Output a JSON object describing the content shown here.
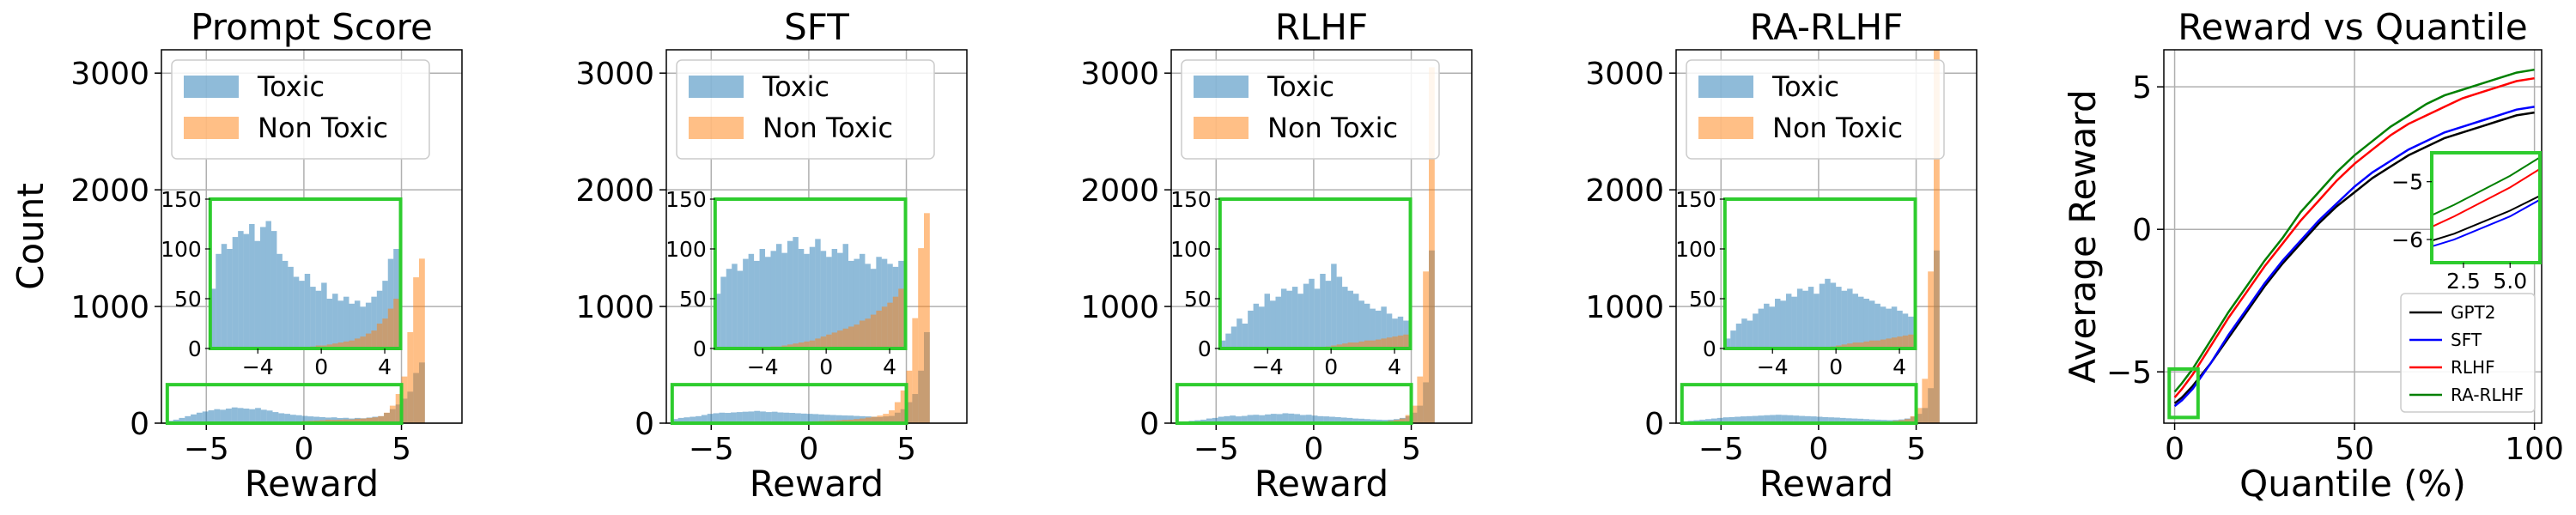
{
  "chart_data": [
    {
      "type": "bar",
      "title": "Prompt Score",
      "xlabel": "Reward",
      "ylabel": "Count",
      "xlim": [
        -7.3,
        8.1
      ],
      "ylim": [
        0,
        3200
      ],
      "xticks": [
        -5,
        0,
        5
      ],
      "xtick_labels": [
        "−5",
        "0",
        "5"
      ],
      "yticks": [
        0,
        1000,
        2000,
        3000
      ],
      "ytick_labels": [
        "0",
        "1000",
        "2000",
        "3000"
      ],
      "grid": true,
      "legend": {
        "position": "top-left",
        "entries": [
          "Toxic",
          "Non Toxic"
        ]
      },
      "bin_start": -7.0,
      "bin_width": 0.3,
      "series": [
        {
          "name": "Toxic",
          "color": "#1f77b4",
          "values": [
            20,
            30,
            45,
            60,
            75,
            90,
            100,
            110,
            120,
            115,
            125,
            135,
            130,
            125,
            120,
            130,
            115,
            108,
            95,
            85,
            80,
            72,
            68,
            62,
            58,
            55,
            52,
            48,
            50,
            44,
            46,
            40,
            45,
            42,
            48,
            55,
            60,
            88,
            120,
            160,
            210,
            270,
            430,
            520
          ]
        },
        {
          "name": "Non Toxic",
          "color": "#ff7f0e",
          "values": [
            0,
            0,
            0,
            0,
            0,
            0,
            0,
            0,
            0,
            0,
            0,
            0,
            0,
            0,
            0,
            2,
            3,
            4,
            5,
            7,
            10,
            13,
            15,
            18,
            20,
            22,
            25,
            30,
            28,
            30,
            32,
            32,
            38,
            40,
            45,
            50,
            60,
            90,
            150,
            250,
            400,
            780,
            1250,
            1410
          ]
        }
      ],
      "inset": {
        "xlim": [
          -7,
          5
        ],
        "ylim": [
          0,
          150
        ],
        "xtick_labels": [
          "−4",
          "0",
          "4"
        ],
        "ytick_labels": [
          "0",
          "50",
          "100",
          "150"
        ],
        "bin_start": -7.0,
        "bin_width": 0.35,
        "series": [
          {
            "name": "Toxic",
            "values": [
              60,
              95,
              105,
              100,
              112,
              118,
              115,
              125,
              108,
              122,
              128,
              118,
              95,
              88,
              82,
              72,
              68,
              75,
              62,
              58,
              66,
              50,
              55,
              48,
              52,
              45,
              48,
              42,
              46,
              52,
              58,
              68,
              90,
              100
            ]
          },
          {
            "name": "Non Toxic",
            "values": [
              0,
              0,
              0,
              0,
              0,
              0,
              0,
              0,
              0,
              0,
              0,
              0,
              0,
              0,
              0,
              0,
              0,
              1,
              2,
              3,
              3,
              4,
              5,
              6,
              7,
              8,
              10,
              12,
              15,
              18,
              25,
              30,
              40,
              50
            ]
          }
        ]
      }
    },
    {
      "type": "bar",
      "title": "SFT",
      "xlabel": "Reward",
      "ylabel": "",
      "xlim": [
        -7.3,
        8.1
      ],
      "ylim": [
        0,
        3200
      ],
      "xticks": [
        -5,
        0,
        5
      ],
      "xtick_labels": [
        "−5",
        "0",
        "5"
      ],
      "yticks": [
        0,
        1000,
        2000,
        3000
      ],
      "ytick_labels": [
        "0",
        "1000",
        "2000",
        "3000"
      ],
      "grid": true,
      "legend": {
        "position": "top-left",
        "entries": [
          "Toxic",
          "Non Toxic"
        ]
      },
      "bin_start": -7.0,
      "bin_width": 0.3,
      "series": [
        {
          "name": "Toxic",
          "color": "#1f77b4",
          "values": [
            35,
            45,
            50,
            55,
            60,
            70,
            80,
            85,
            90,
            88,
            92,
            95,
            98,
            100,
            105,
            100,
            95,
            98,
            92,
            90,
            88,
            85,
            82,
            80,
            78,
            75,
            72,
            70,
            68,
            66,
            65,
            62,
            60,
            58,
            55,
            52,
            58,
            62,
            90,
            120,
            180,
            250,
            450,
            780
          ]
        },
        {
          "name": "Non Toxic",
          "color": "#ff7f0e",
          "values": [
            0,
            0,
            0,
            0,
            0,
            0,
            0,
            0,
            0,
            0,
            0,
            0,
            0,
            1,
            2,
            3,
            4,
            5,
            6,
            7,
            9,
            10,
            12,
            14,
            16,
            18,
            20,
            22,
            25,
            28,
            30,
            35,
            40,
            48,
            55,
            65,
            80,
            110,
            180,
            280,
            450,
            900,
            1500,
            1800
          ]
        }
      ],
      "inset": {
        "xlim": [
          -7,
          5
        ],
        "ylim": [
          0,
          150
        ],
        "xtick_labels": [
          "−4",
          "0",
          "4"
        ],
        "ytick_labels": [
          "0",
          "50",
          "100",
          "150"
        ],
        "bin_start": -7.0,
        "bin_width": 0.35,
        "series": [
          {
            "name": "Toxic",
            "values": [
              55,
              72,
              80,
              85,
              78,
              90,
              95,
              88,
              100,
              92,
              98,
              105,
              96,
              108,
              112,
              100,
              95,
              102,
              110,
              98,
              92,
              100,
              96,
              105,
              88,
              90,
              95,
              85,
              80,
              92,
              90,
              85,
              82,
              88
            ]
          },
          {
            "name": "Non Toxic",
            "values": [
              0,
              0,
              0,
              0,
              0,
              0,
              0,
              0,
              0,
              1,
              2,
              2,
              3,
              4,
              5,
              6,
              7,
              8,
              10,
              12,
              14,
              16,
              18,
              20,
              22,
              24,
              28,
              30,
              34,
              38,
              42,
              46,
              52,
              60
            ]
          }
        ]
      }
    },
    {
      "type": "bar",
      "title": "RLHF",
      "xlabel": "Reward",
      "ylabel": "",
      "xlim": [
        -7.3,
        8.1
      ],
      "ylim": [
        0,
        3200
      ],
      "xticks": [
        -5,
        0,
        5
      ],
      "xtick_labels": [
        "−5",
        "0",
        "5"
      ],
      "yticks": [
        0,
        1000,
        2000,
        3000
      ],
      "ytick_labels": [
        "0",
        "1000",
        "2000",
        "3000"
      ],
      "grid": true,
      "legend": {
        "position": "top-left",
        "entries": [
          "Toxic",
          "Non Toxic"
        ]
      },
      "bin_start": -7.0,
      "bin_width": 0.3,
      "series": [
        {
          "name": "Toxic",
          "color": "#1f77b4",
          "values": [
            10,
            15,
            20,
            25,
            30,
            40,
            45,
            55,
            60,
            65,
            58,
            62,
            70,
            72,
            68,
            75,
            80,
            78,
            85,
            82,
            78,
            70,
            72,
            65,
            60,
            58,
            55,
            52,
            48,
            45,
            40,
            38,
            35,
            32,
            30,
            28,
            30,
            35,
            45,
            60,
            90,
            150,
            350,
            1480
          ]
        },
        {
          "name": "Non Toxic",
          "color": "#ff7f0e",
          "values": [
            0,
            0,
            0,
            0,
            0,
            0,
            0,
            0,
            0,
            0,
            0,
            0,
            0,
            0,
            0,
            0,
            0,
            0,
            0,
            0,
            0,
            1,
            1,
            2,
            2,
            3,
            3,
            4,
            5,
            6,
            7,
            8,
            9,
            10,
            12,
            15,
            20,
            28,
            40,
            70,
            150,
            400,
            1300,
            3050
          ]
        }
      ],
      "inset": {
        "xlim": [
          -7,
          5
        ],
        "ylim": [
          0,
          150
        ],
        "xtick_labels": [
          "−4",
          "0",
          "4"
        ],
        "ytick_labels": [
          "0",
          "50",
          "100",
          "150"
        ],
        "bin_start": -7.0,
        "bin_width": 0.35,
        "series": [
          {
            "name": "Toxic",
            "values": [
              8,
              15,
              22,
              30,
              25,
              38,
              45,
              42,
              55,
              48,
              52,
              60,
              58,
              62,
              55,
              65,
              70,
              60,
              75,
              68,
              85,
              72,
              62,
              58,
              55,
              48,
              45,
              40,
              38,
              42,
              35,
              30,
              32,
              28
            ]
          },
          {
            "name": "Non Toxic",
            "values": [
              0,
              0,
              0,
              0,
              0,
              0,
              0,
              0,
              0,
              0,
              0,
              0,
              0,
              0,
              0,
              0,
              0,
              0,
              1,
              2,
              3,
              4,
              5,
              6,
              6,
              7,
              8,
              8,
              9,
              10,
              11,
              12,
              13,
              14
            ]
          }
        ]
      }
    },
    {
      "type": "bar",
      "title": "RA-RLHF",
      "xlabel": "Reward",
      "ylabel": "",
      "xlim": [
        -7.3,
        8.1
      ],
      "ylim": [
        0,
        3200
      ],
      "xticks": [
        -5,
        0,
        5
      ],
      "xtick_labels": [
        "−5",
        "0",
        "5"
      ],
      "yticks": [
        0,
        1000,
        2000,
        3000
      ],
      "ytick_labels": [
        "0",
        "1000",
        "2000",
        "3000"
      ],
      "grid": true,
      "legend": {
        "position": "top-left",
        "entries": [
          "Toxic",
          "Non Toxic"
        ]
      },
      "bin_start": -7.0,
      "bin_width": 0.3,
      "series": [
        {
          "name": "Toxic",
          "color": "#1f77b4",
          "values": [
            15,
            20,
            25,
            30,
            35,
            40,
            45,
            50,
            52,
            55,
            58,
            60,
            62,
            65,
            68,
            70,
            72,
            70,
            68,
            65,
            62,
            60,
            58,
            55,
            52,
            50,
            48,
            45,
            42,
            40,
            38,
            35,
            32,
            30,
            28,
            26,
            28,
            32,
            40,
            55,
            80,
            130,
            300,
            1480
          ]
        },
        {
          "name": "Non Toxic",
          "color": "#ff7f0e",
          "values": [
            0,
            0,
            0,
            0,
            0,
            0,
            0,
            0,
            0,
            0,
            0,
            0,
            0,
            0,
            0,
            0,
            0,
            0,
            0,
            0,
            0,
            1,
            1,
            2,
            2,
            3,
            3,
            4,
            5,
            6,
            7,
            8,
            9,
            10,
            12,
            15,
            20,
            25,
            35,
            60,
            130,
            380,
            1300,
            3200
          ]
        }
      ],
      "inset": {
        "xlim": [
          -7,
          5
        ],
        "ylim": [
          0,
          150
        ],
        "xtick_labels": [
          "−4",
          "0",
          "4"
        ],
        "ytick_labels": [
          "0",
          "50",
          "100",
          "150"
        ],
        "bin_start": -7.0,
        "bin_width": 0.35,
        "series": [
          {
            "name": "Toxic",
            "values": [
              10,
              18,
              25,
              30,
              28,
              35,
              40,
              45,
              42,
              50,
              48,
              55,
              52,
              60,
              58,
              62,
              55,
              65,
              70,
              66,
              62,
              58,
              60,
              55,
              52,
              50,
              48,
              45,
              42,
              40,
              42,
              38,
              35,
              32
            ]
          },
          {
            "name": "Non Toxic",
            "values": [
              0,
              0,
              0,
              0,
              0,
              0,
              0,
              0,
              0,
              0,
              0,
              0,
              0,
              0,
              0,
              0,
              0,
              0,
              1,
              2,
              3,
              4,
              5,
              6,
              6,
              7,
              8,
              8,
              9,
              10,
              11,
              12,
              13,
              14
            ]
          }
        ]
      }
    },
    {
      "type": "line",
      "title": "Reward vs Quantile",
      "xlabel": "Quantile (%)",
      "ylabel": "Average Reward",
      "xlim": [
        -3,
        102
      ],
      "ylim": [
        -6.8,
        6.3
      ],
      "xticks": [
        0,
        50,
        100
      ],
      "xtick_labels": [
        "0",
        "50",
        "100"
      ],
      "yticks": [
        -5,
        0,
        5
      ],
      "ytick_labels": [
        "−5",
        "0",
        "5"
      ],
      "grid": true,
      "legend": {
        "position": "bottom-right",
        "entries": [
          "GPT2",
          "SFT",
          "RLHF",
          "RA-RLHF"
        ]
      },
      "x": [
        0,
        2,
        5,
        10,
        15,
        20,
        25,
        30,
        35,
        40,
        45,
        50,
        55,
        60,
        65,
        70,
        75,
        80,
        85,
        90,
        95,
        100
      ],
      "series": [
        {
          "name": "GPT2",
          "color": "#000000",
          "values": [
            -6.1,
            -5.9,
            -5.5,
            -4.7,
            -3.8,
            -2.9,
            -2.0,
            -1.2,
            -0.5,
            0.2,
            0.8,
            1.3,
            1.8,
            2.2,
            2.6,
            2.9,
            3.2,
            3.4,
            3.6,
            3.8,
            4.0,
            4.1
          ]
        },
        {
          "name": "SFT",
          "color": "#0000ff",
          "values": [
            -6.2,
            -6.0,
            -5.6,
            -4.7,
            -3.7,
            -2.8,
            -1.9,
            -1.1,
            -0.4,
            0.3,
            0.9,
            1.5,
            2.0,
            2.4,
            2.8,
            3.1,
            3.4,
            3.6,
            3.8,
            4.0,
            4.2,
            4.3
          ]
        },
        {
          "name": "RLHF",
          "color": "#ff0000",
          "values": [
            -5.9,
            -5.6,
            -5.1,
            -4.1,
            -3.1,
            -2.2,
            -1.3,
            -0.5,
            0.3,
            1.0,
            1.7,
            2.3,
            2.8,
            3.3,
            3.7,
            4.0,
            4.3,
            4.6,
            4.8,
            5.0,
            5.2,
            5.3
          ]
        },
        {
          "name": "RA-RLHF",
          "color": "#008000",
          "values": [
            -5.7,
            -5.4,
            -4.9,
            -3.9,
            -2.9,
            -2.0,
            -1.1,
            -0.3,
            0.6,
            1.3,
            2.0,
            2.6,
            3.1,
            3.6,
            4.0,
            4.4,
            4.7,
            4.9,
            5.1,
            5.3,
            5.5,
            5.6
          ]
        }
      ],
      "inset": {
        "xlim": [
          0.8,
          6.6
        ],
        "ylim": [
          -6.4,
          -4.5
        ],
        "xtick_labels": [
          "2.5",
          "5.0"
        ],
        "ytick_labels": [
          "−6",
          "−5"
        ]
      }
    }
  ]
}
